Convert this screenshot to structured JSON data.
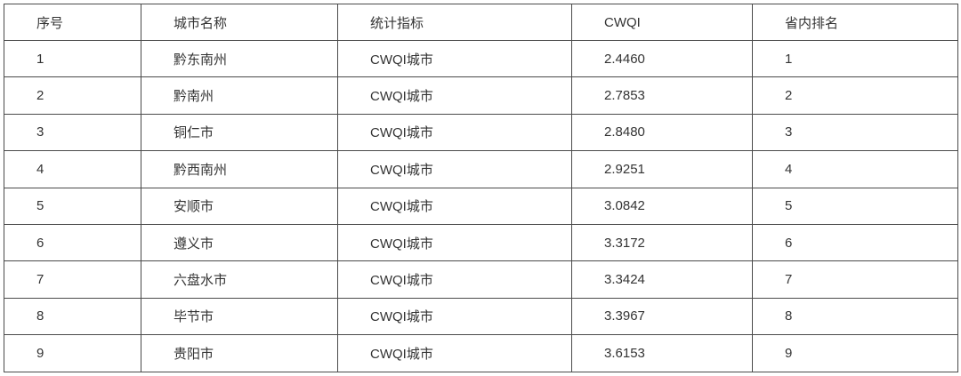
{
  "table": {
    "headers": [
      "序号",
      "城市名称",
      "统计指标",
      "CWQI",
      "省内排名"
    ],
    "rows": [
      [
        "1",
        "黔东南州",
        "CWQI城市",
        "2.4460",
        "1"
      ],
      [
        "2",
        "黔南州",
        "CWQI城市",
        "2.7853",
        "2"
      ],
      [
        "3",
        "铜仁市",
        "CWQI城市",
        "2.8480",
        "3"
      ],
      [
        "4",
        "黔西南州",
        "CWQI城市",
        "2.9251",
        "4"
      ],
      [
        "5",
        "安顺市",
        "CWQI城市",
        "3.0842",
        "5"
      ],
      [
        "6",
        "遵义市",
        "CWQI城市",
        "3.3172",
        "6"
      ],
      [
        "7",
        "六盘水市",
        "CWQI城市",
        "3.3424",
        "7"
      ],
      [
        "8",
        "毕节市",
        "CWQI城市",
        "3.3967",
        "8"
      ],
      [
        "9",
        "贵阳市",
        "CWQI城市",
        "3.6153",
        "9"
      ]
    ]
  }
}
